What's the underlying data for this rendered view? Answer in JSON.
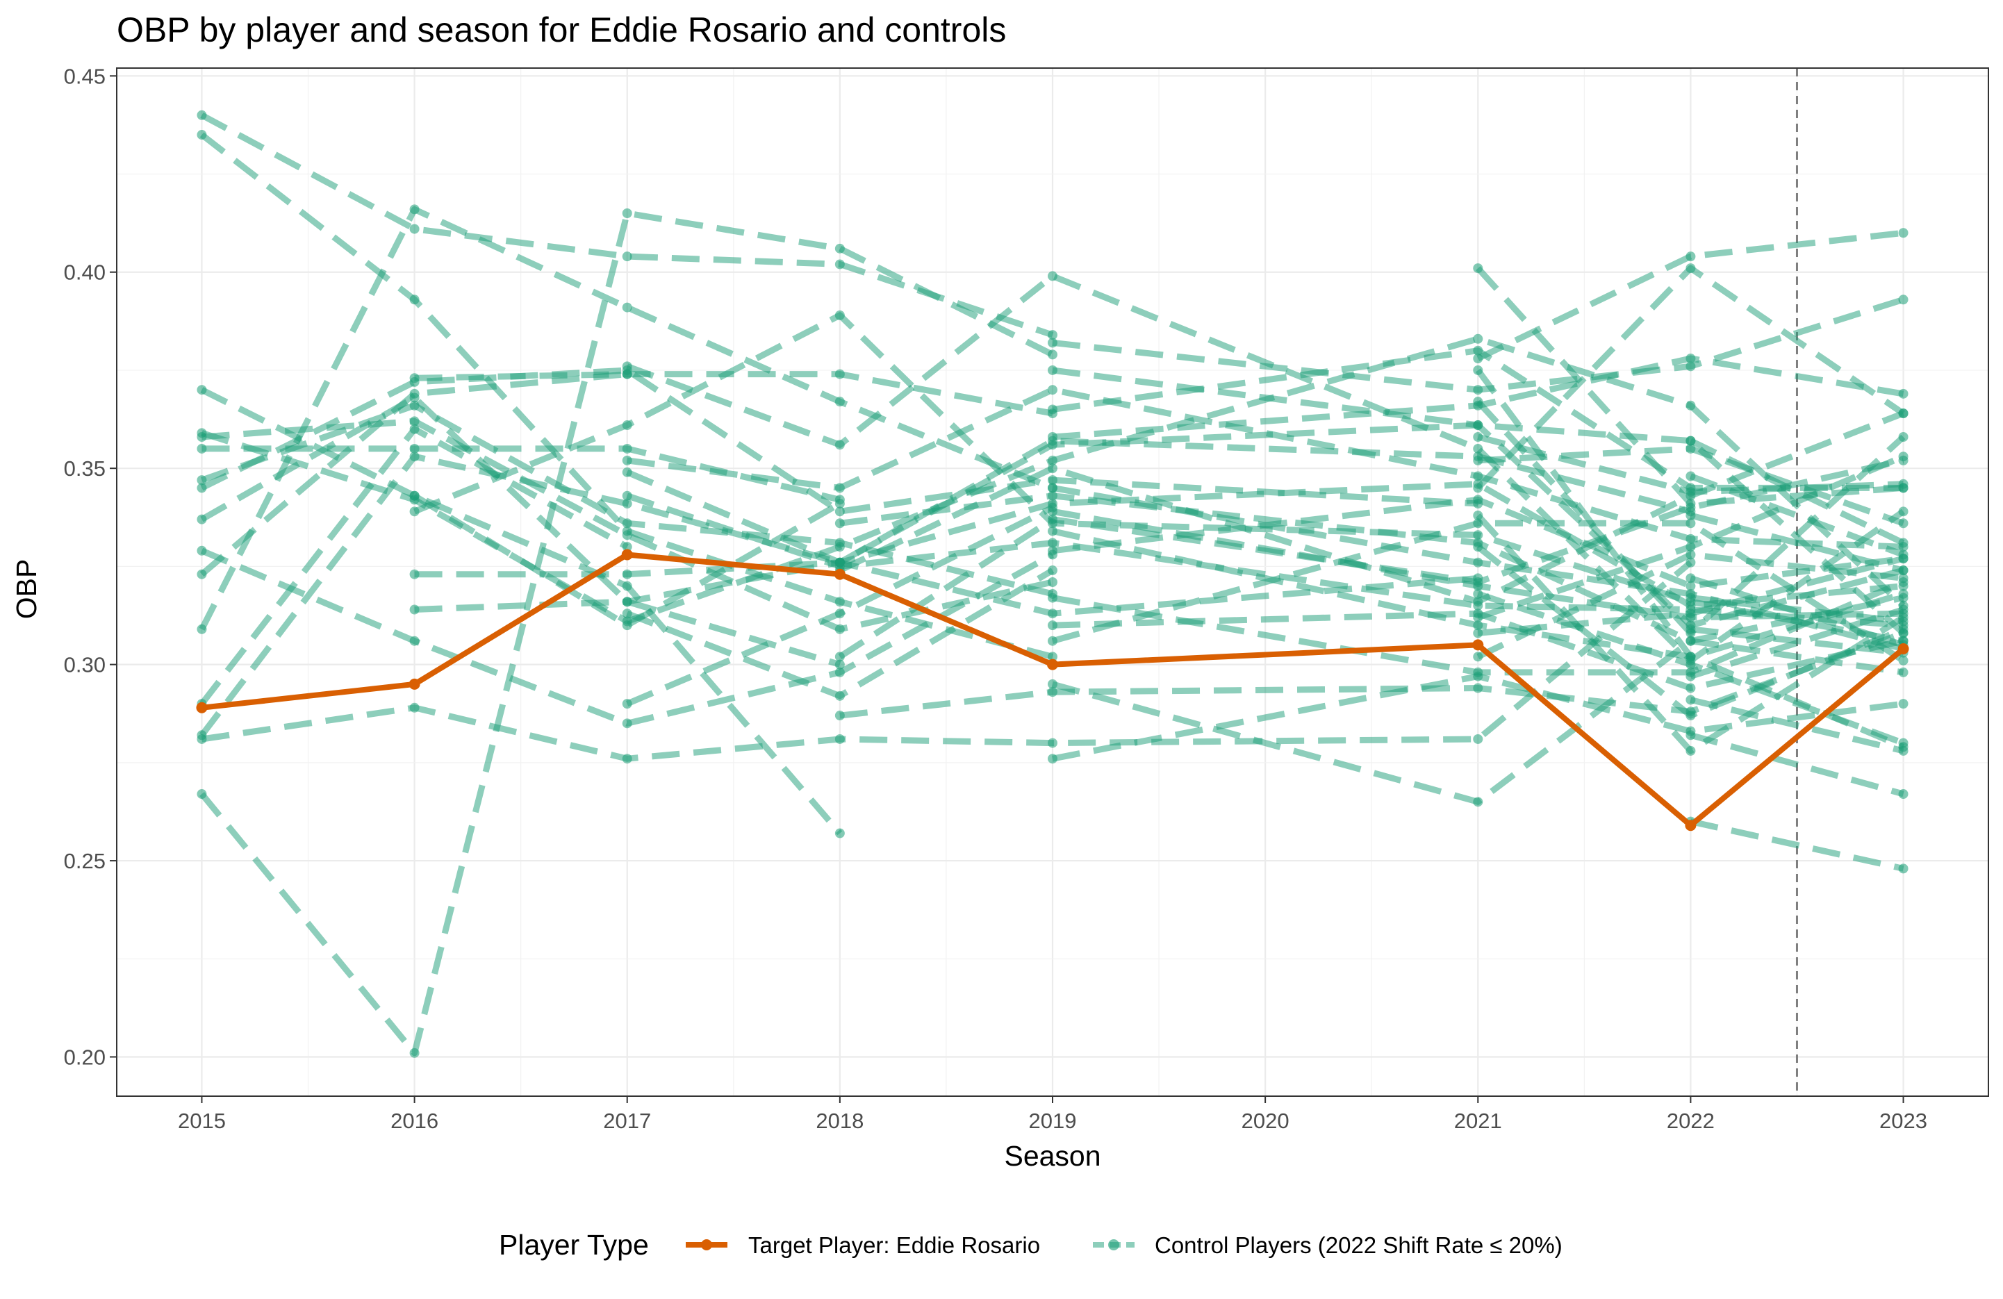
{
  "chart_data": {
    "type": "line",
    "title": "OBP by player and season for Eddie Rosario and controls",
    "xlabel": "Season",
    "ylabel": "OBP",
    "x_ticks": [
      "2015",
      "2016",
      "2017",
      "2018",
      "2019",
      "2020",
      "2021",
      "2022",
      "2023"
    ],
    "y_ticks": [
      "0.20",
      "0.25",
      "0.30",
      "0.35",
      "0.40",
      "0.45"
    ],
    "xlim": [
      2014.6,
      2023.4
    ],
    "ylim": [
      0.19,
      0.452
    ],
    "grid": true,
    "reference_line": {
      "x": 2022.5,
      "style": "dashed"
    },
    "legend": {
      "title": "Player Type",
      "position": "bottom",
      "entries": [
        "Target Player: Eddie Rosario",
        "Control Players (2022 Shift Rate ≤ 20%)"
      ]
    },
    "colors": {
      "target": "#d95f02",
      "control": "#1b9e77",
      "reference": "#7f7f7f"
    },
    "target_series": {
      "name": "Target Player: Eddie Rosario",
      "x": [
        2015,
        2016,
        2017,
        2018,
        2019,
        2021,
        2022,
        2023
      ],
      "y": [
        0.289,
        0.295,
        0.328,
        0.323,
        0.3,
        0.305,
        0.259,
        0.304
      ]
    },
    "control_series": [
      {
        "x": [
          2015,
          2016,
          2017,
          2018,
          2019
        ],
        "y": [
          0.44,
          0.411,
          0.404,
          0.402,
          0.384
        ]
      },
      {
        "x": [
          2015,
          2016,
          2017,
          2018,
          2019
        ],
        "y": [
          0.435,
          0.393,
          0.334,
          0.316,
          0.302
        ]
      },
      {
        "x": [
          2015,
          2016,
          2017,
          2018
        ],
        "y": [
          0.37,
          0.343,
          0.32,
          0.257
        ]
      },
      {
        "x": [
          2015,
          2016,
          2017,
          2018,
          2019,
          2021,
          2022,
          2023
        ],
        "y": [
          0.359,
          0.342,
          0.311,
          0.33,
          0.352,
          0.383,
          0.366,
          0.315
        ]
      },
      {
        "x": [
          2015,
          2016,
          2017,
          2018,
          2019
        ],
        "y": [
          0.358,
          0.362,
          0.333,
          0.309,
          0.321
        ]
      },
      {
        "x": [
          2015,
          2016,
          2017,
          2018
        ],
        "y": [
          0.355,
          0.355,
          0.355,
          0.342
        ]
      },
      {
        "x": [
          2015,
          2016,
          2017,
          2018,
          2019
        ],
        "y": [
          0.347,
          0.366,
          0.336,
          0.331,
          0.318
        ]
      },
      {
        "x": [
          2015,
          2016,
          2017,
          2018,
          2019,
          2021
        ],
        "y": [
          0.345,
          0.372,
          0.375,
          0.339,
          0.347,
          0.341
        ]
      },
      {
        "x": [
          2015,
          2016,
          2017,
          2018
        ],
        "y": [
          0.337,
          0.368,
          0.316,
          0.3
        ]
      },
      {
        "x": [
          2015,
          2016,
          2017,
          2018,
          2019
        ],
        "y": [
          0.329,
          0.306,
          0.285,
          0.298,
          0.328
        ]
      },
      {
        "x": [
          2015,
          2016,
          2017
        ],
        "y": [
          0.323,
          0.369,
          0.374
        ]
      },
      {
        "x": [
          2015,
          2016,
          2017,
          2018,
          2019
        ],
        "y": [
          0.309,
          0.416,
          0.391,
          0.367,
          0.345
        ]
      },
      {
        "x": [
          2015,
          2016,
          2017
        ],
        "y": [
          0.29,
          0.36,
          0.33
        ]
      },
      {
        "x": [
          2015,
          2016,
          2017,
          2018,
          2019,
          2021,
          2022
        ],
        "y": [
          0.282,
          0.353,
          0.341,
          0.326,
          0.357,
          0.353,
          0.339
        ]
      },
      {
        "x": [
          2015,
          2016,
          2017,
          2018,
          2019,
          2021,
          2022
        ],
        "y": [
          0.281,
          0.289,
          0.276,
          0.281,
          0.28,
          0.281,
          0.326
        ]
      },
      {
        "x": [
          2015,
          2016,
          2017,
          2018,
          2019
        ],
        "y": [
          0.267,
          0.201,
          0.415,
          0.406,
          0.379
        ]
      },
      {
        "x": [
          2016,
          2017,
          2018,
          2019
        ],
        "y": [
          0.373,
          0.374,
          0.374,
          0.364
        ]
      },
      {
        "x": [
          2016,
          2017,
          2018
        ],
        "y": [
          0.343,
          0.31,
          0.341
        ]
      },
      {
        "x": [
          2016,
          2017,
          2018,
          2019,
          2021,
          2022,
          2023
        ],
        "y": [
          0.339,
          0.361,
          0.389,
          0.336,
          0.333,
          0.316,
          0.306
        ]
      },
      {
        "x": [
          2016,
          2017,
          2018,
          2019,
          2021
        ],
        "y": [
          0.323,
          0.323,
          0.326,
          0.313,
          0.322
        ]
      },
      {
        "x": [
          2016,
          2017,
          2018,
          2019,
          2021,
          2022,
          2023
        ],
        "y": [
          0.314,
          0.316,
          0.326,
          0.341,
          0.346,
          0.315,
          0.32
        ]
      },
      {
        "x": [
          2017,
          2018,
          2019,
          2021,
          2022,
          2023
        ],
        "y": [
          0.376,
          0.356,
          0.399,
          0.355,
          0.301,
          0.339
        ]
      },
      {
        "x": [
          2017,
          2018,
          2019,
          2021,
          2022,
          2023
        ],
        "y": [
          0.352,
          0.345,
          0.37,
          0.348,
          0.332,
          0.33
        ]
      },
      {
        "x": [
          2017,
          2018,
          2019,
          2021,
          2022,
          2023
        ],
        "y": [
          0.349,
          0.326,
          0.356,
          0.361,
          0.357,
          0.308
        ]
      },
      {
        "x": [
          2017,
          2018,
          2019,
          2021,
          2022,
          2023
        ],
        "y": [
          0.343,
          0.325,
          0.331,
          0.315,
          0.314,
          0.31
        ]
      },
      {
        "x": [
          2017,
          2018,
          2019
        ],
        "y": [
          0.313,
          0.292,
          0.324
        ]
      },
      {
        "x": [
          2017,
          2018,
          2019
        ],
        "y": [
          0.29,
          0.313,
          0.34
        ]
      },
      {
        "x": [
          2018,
          2019,
          2021,
          2022,
          2023
        ],
        "y": [
          0.336,
          0.343,
          0.331,
          0.306,
          0.317
        ]
      },
      {
        "x": [
          2018,
          2019,
          2021,
          2022,
          2023
        ],
        "y": [
          0.324,
          0.35,
          0.316,
          0.343,
          0.364
        ]
      },
      {
        "x": [
          2018,
          2019,
          2021,
          2022,
          2023
        ],
        "y": [
          0.302,
          0.337,
          0.321,
          0.34,
          0.352
        ]
      },
      {
        "x": [
          2018,
          2019,
          2021,
          2022,
          2023
        ],
        "y": [
          0.287,
          0.293,
          0.294,
          0.288,
          0.308
        ]
      },
      {
        "x": [
          2019,
          2021,
          2022,
          2023
        ],
        "y": [
          0.382,
          0.37,
          0.376,
          0.393
        ]
      },
      {
        "x": [
          2019,
          2021,
          2022,
          2023
        ],
        "y": [
          0.375,
          0.361,
          0.31,
          0.324
        ]
      },
      {
        "x": [
          2019,
          2021,
          2022,
          2023
        ],
        "y": [
          0.365,
          0.38,
          0.345,
          0.345
        ]
      },
      {
        "x": [
          2019,
          2021,
          2022,
          2023
        ],
        "y": [
          0.358,
          0.366,
          0.378,
          0.369
        ]
      },
      {
        "x": [
          2019,
          2021,
          2022,
          2023
        ],
        "y": [
          0.345,
          0.326,
          0.318,
          0.304
        ]
      },
      {
        "x": [
          2019,
          2021,
          2022,
          2023
        ],
        "y": [
          0.339,
          0.32,
          0.312,
          0.313
        ]
      },
      {
        "x": [
          2019,
          2021,
          2022,
          2023
        ],
        "y": [
          0.334,
          0.31,
          0.302,
          0.318
        ]
      },
      {
        "x": [
          2019,
          2021,
          2022,
          2023
        ],
        "y": [
          0.329,
          0.342,
          0.32,
          0.327
        ]
      },
      {
        "x": [
          2019,
          2021,
          2022,
          2023
        ],
        "y": [
          0.317,
          0.298,
          0.298,
          0.321
        ]
      },
      {
        "x": [
          2019,
          2021,
          2022,
          2023
        ],
        "y": [
          0.31,
          0.313,
          0.294,
          0.306
        ]
      },
      {
        "x": [
          2019,
          2021,
          2022,
          2023
        ],
        "y": [
          0.306,
          0.336,
          0.336,
          0.301
        ]
      },
      {
        "x": [
          2019,
          2021,
          2022,
          2023
        ],
        "y": [
          0.295,
          0.265,
          0.306,
          0.298
        ]
      },
      {
        "x": [
          2019,
          2021,
          2022,
          2023
        ],
        "y": [
          0.276,
          0.297,
          0.283,
          0.29
        ]
      },
      {
        "x": [
          2021,
          2022,
          2023
        ],
        "y": [
          0.401,
          0.341,
          0.345
        ]
      },
      {
        "x": [
          2021,
          2022,
          2023
        ],
        "y": [
          0.378,
          0.404,
          0.41
        ]
      },
      {
        "x": [
          2021,
          2022,
          2023
        ],
        "y": [
          0.375,
          0.302,
          0.279
        ]
      },
      {
        "x": [
          2021,
          2022,
          2023
        ],
        "y": [
          0.367,
          0.308,
          0.358
        ]
      },
      {
        "x": [
          2021,
          2022,
          2023
        ],
        "y": [
          0.358,
          0.344,
          0.346
        ]
      },
      {
        "x": [
          2021,
          2022,
          2023
        ],
        "y": [
          0.352,
          0.355,
          0.336
        ]
      },
      {
        "x": [
          2021,
          2022,
          2023
        ],
        "y": [
          0.345,
          0.401,
          0.364
        ]
      },
      {
        "x": [
          2021,
          2022,
          2023
        ],
        "y": [
          0.338,
          0.278,
          0.312
        ]
      },
      {
        "x": [
          2021,
          2022,
          2023
        ],
        "y": [
          0.33,
          0.287,
          0.309
        ]
      },
      {
        "x": [
          2021,
          2022,
          2023
        ],
        "y": [
          0.318,
          0.3,
          0.28
        ]
      },
      {
        "x": [
          2021,
          2022,
          2023
        ],
        "y": [
          0.312,
          0.33,
          0.353
        ]
      },
      {
        "x": [
          2021,
          2022,
          2023
        ],
        "y": [
          0.308,
          0.313,
          0.327
        ]
      },
      {
        "x": [
          2021,
          2022,
          2023
        ],
        "y": [
          0.302,
          0.328,
          0.322
        ]
      },
      {
        "x": [
          2022,
          2023
        ],
        "y": [
          0.26,
          0.248
        ]
      },
      {
        "x": [
          2022,
          2023
        ],
        "y": [
          0.282,
          0.267
        ]
      },
      {
        "x": [
          2022,
          2023
        ],
        "y": [
          0.291,
          0.278
        ]
      },
      {
        "x": [
          2022,
          2023
        ],
        "y": [
          0.297,
          0.314
        ]
      },
      {
        "x": [
          2022,
          2023
        ],
        "y": [
          0.309,
          0.303
        ]
      },
      {
        "x": [
          2022,
          2023
        ],
        "y": [
          0.317,
          0.311
        ]
      },
      {
        "x": [
          2022,
          2023
        ],
        "y": [
          0.322,
          0.305
        ]
      },
      {
        "x": [
          2022,
          2023
        ],
        "y": [
          0.338,
          0.324
        ]
      },
      {
        "x": [
          2022,
          2023
        ],
        "y": [
          0.348,
          0.328
        ]
      },
      {
        "x": [
          2022,
          2023
        ],
        "y": [
          0.357,
          0.331
        ]
      }
    ]
  }
}
